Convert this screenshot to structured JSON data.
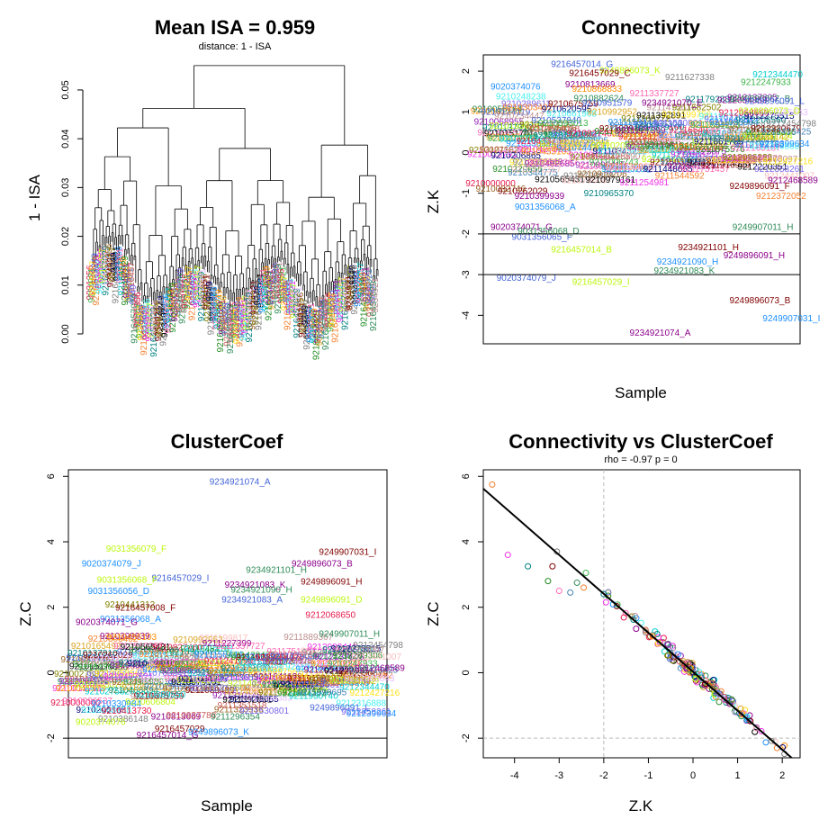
{
  "colors": {
    "palette": [
      "#e6194b",
      "#3cb44b",
      "#ffe119",
      "#4363d8",
      "#f58231",
      "#911eb4",
      "#46f0f0",
      "#f032e6",
      "#bcf60c",
      "#fabebe",
      "#008080",
      "#e6beff",
      "#9a6324",
      "#800000",
      "#808000",
      "#000075",
      "#808080",
      "#000000",
      "#1e90ff",
      "#ff69b4",
      "#00ced1",
      "#ff8c00",
      "#228b22",
      "#8b008b",
      "#daa520",
      "#4682b4",
      "#cd5c5c",
      "#7b68ee",
      "#2e8b57",
      "#bc8f8f"
    ],
    "threshold_line": "#000000",
    "guide_line": "#bbbbbb"
  },
  "chart_data": [
    {
      "panel": "dendrogram",
      "type": "dendrogram",
      "title": "Mean ISA = 0.959",
      "subtitle": "distance: 1 - ISA",
      "ylabel": "1 - ISA",
      "xlabel": "",
      "ylim": [
        0,
        0.057
      ],
      "yticks": [
        0.0,
        0.01,
        0.02,
        0.03,
        0.04,
        0.05
      ],
      "ytick_labels": [
        "0.00",
        "0.01",
        "0.02",
        "0.03",
        "0.04",
        "0.05"
      ],
      "n_leaves": 180,
      "top_merge_height": 0.055,
      "leaf_label_examples": [
        "9031356",
        "9234921",
        "9216457",
        "9249",
        "9216457029",
        "9234921"
      ]
    },
    {
      "panel": "connectivity",
      "type": "scatter",
      "title": "Connectivity",
      "xlabel": "Sample",
      "ylabel": "Z.K",
      "ylim": [
        -4.7,
        2.4
      ],
      "yticks": [
        -4,
        -3,
        -2,
        -1,
        0,
        1,
        2
      ],
      "ytick_labels": [
        "-4",
        "-3",
        "-2",
        "-1",
        "0",
        "1",
        "2"
      ],
      "hlines": [
        -2,
        -3
      ],
      "n_points": 180,
      "labeled_points": [
        {
          "label": "9216457014_G",
          "x": 0.2,
          "y": 2.1
        },
        {
          "label": "9249896073_K",
          "x": 0.36,
          "y": 1.95
        },
        {
          "label": "9216457029_C",
          "x": 0.26,
          "y": 1.88
        },
        {
          "label": "9020374076",
          "x": 0.0,
          "y": 1.55
        },
        {
          "label": "9234921070_E",
          "x": 0.5,
          "y": 1.15
        },
        {
          "label": "9249896067_B",
          "x": 0.79,
          "y": 1.25
        },
        {
          "label": "9249896091_L",
          "x": 0.84,
          "y": 1.2
        },
        {
          "label": "9249896073_D",
          "x": 0.82,
          "y": 0.95
        },
        {
          "label": "9249896091_F",
          "x": 0.79,
          "y": -0.9
        },
        {
          "label": "9031356068_A",
          "x": 0.08,
          "y": -1.4
        },
        {
          "label": "9020374071_G",
          "x": 0.0,
          "y": -1.9
        },
        {
          "label": "9031356068_D",
          "x": 0.09,
          "y": -2.0
        },
        {
          "label": "9031356065_F",
          "x": 0.07,
          "y": -2.15
        },
        {
          "label": "9216457014_B",
          "x": 0.2,
          "y": -2.45
        },
        {
          "label": "9234921101_H",
          "x": 0.62,
          "y": -2.4
        },
        {
          "label": "9234921090_H",
          "x": 0.55,
          "y": -2.75
        },
        {
          "label": "9249896091_H",
          "x": 0.77,
          "y": -2.6
        },
        {
          "label": "9234921083_K",
          "x": 0.54,
          "y": -2.98
        },
        {
          "label": "9020374079_J",
          "x": 0.02,
          "y": -3.15
        },
        {
          "label": "9216457029_I",
          "x": 0.27,
          "y": -3.25
        },
        {
          "label": "9249896073_B",
          "x": 0.79,
          "y": -3.7
        },
        {
          "label": "9249907031_I",
          "x": 0.9,
          "y": -4.15
        },
        {
          "label": "9234921074_A",
          "x": 0.46,
          "y": -4.5
        },
        {
          "label": "9249907011_H",
          "x": 0.8,
          "y": -1.9
        }
      ]
    },
    {
      "panel": "clustercoef",
      "type": "scatter",
      "title": "ClusterCoef",
      "xlabel": "Sample",
      "ylabel": "Z.C",
      "ylim": [
        -2.6,
        6.2
      ],
      "yticks": [
        -2,
        0,
        2,
        4,
        6
      ],
      "ytick_labels": [
        "-2",
        "0",
        "2",
        "4",
        "6"
      ],
      "hlines": [
        -2
      ],
      "n_points": 180,
      "labeled_points": [
        {
          "label": "9234921074_A",
          "x": 0.44,
          "y": 5.75
        },
        {
          "label": "9031356079_F",
          "x": 0.1,
          "y": 3.7
        },
        {
          "label": "9249907031_I",
          "x": 0.8,
          "y": 3.6
        },
        {
          "label": "9020374079_J",
          "x": 0.02,
          "y": 3.25
        },
        {
          "label": "9249896073_B",
          "x": 0.71,
          "y": 3.25
        },
        {
          "label": "9234921101_H",
          "x": 0.56,
          "y": 3.05
        },
        {
          "label": "9216457029_I",
          "x": 0.25,
          "y": 2.8
        },
        {
          "label": "9031356068_F",
          "x": 0.07,
          "y": 2.75
        },
        {
          "label": "9249896091_H",
          "x": 0.74,
          "y": 2.7
        },
        {
          "label": "9031356056_D",
          "x": 0.04,
          "y": 2.4
        },
        {
          "label": "9234921083_K",
          "x": 0.49,
          "y": 2.6
        },
        {
          "label": "9234921090_H",
          "x": 0.51,
          "y": 2.45
        },
        {
          "label": "9234921083_A",
          "x": 0.48,
          "y": 2.15
        },
        {
          "label": "9249896091_D",
          "x": 0.74,
          "y": 2.15
        },
        {
          "label": "9216457008_F",
          "x": 0.13,
          "y": 1.9
        },
        {
          "label": "9031356068_A",
          "x": 0.08,
          "y": 1.55
        },
        {
          "label": "9020374071_G",
          "x": 0.0,
          "y": 1.45
        },
        {
          "label": "9249907011_H",
          "x": 0.8,
          "y": 1.1
        },
        {
          "label": "9249896091_L",
          "x": 0.77,
          "y": -1.15
        },
        {
          "label": "9020374076",
          "x": 0.0,
          "y": -1.6
        },
        {
          "label": "9216457029",
          "x": 0.26,
          "y": -1.8
        },
        {
          "label": "9249896073_K",
          "x": 0.37,
          "y": -1.9
        },
        {
          "label": "9216457014_G",
          "x": 0.2,
          "y": -2.0
        }
      ]
    },
    {
      "panel": "scatter",
      "type": "scatter",
      "title": "Connectivity vs ClusterCoef",
      "subtitle": "rho = -0.97 p = 0",
      "xlabel": "Z.K",
      "ylabel": "Z.C",
      "xlim": [
        -4.7,
        2.4
      ],
      "ylim": [
        -2.6,
        6.2
      ],
      "xticks": [
        -4,
        -3,
        -2,
        -1,
        0,
        1,
        2
      ],
      "xtick_labels": [
        "-4",
        "-3",
        "-2",
        "-1",
        "0",
        "1",
        "2"
      ],
      "yticks": [
        -2,
        0,
        2,
        4,
        6
      ],
      "ytick_labels": [
        "-2",
        "0",
        "2",
        "4",
        "6"
      ],
      "vline": -2,
      "hline": -2,
      "fit_line": {
        "slope": -1.19,
        "intercept": 0.03
      },
      "outlier_points": [
        {
          "x": -4.5,
          "y": 5.75
        },
        {
          "x": -4.15,
          "y": 3.6
        },
        {
          "x": -3.7,
          "y": 3.25
        },
        {
          "x": -3.15,
          "y": 3.25
        },
        {
          "x": -3.05,
          "y": 3.7
        },
        {
          "x": -3.0,
          "y": 2.5
        },
        {
          "x": -3.25,
          "y": 2.8
        },
        {
          "x": -2.75,
          "y": 2.45
        },
        {
          "x": -2.6,
          "y": 2.75
        },
        {
          "x": -2.4,
          "y": 3.05
        },
        {
          "x": -2.45,
          "y": 2.6
        },
        {
          "x": -1.95,
          "y": 2.15
        },
        {
          "x": -2.0,
          "y": 2.4
        }
      ],
      "n_points": 180
    }
  ]
}
